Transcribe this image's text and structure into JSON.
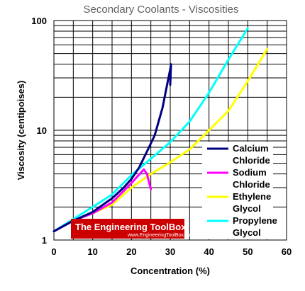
{
  "chart_data": {
    "type": "line",
    "title": "Secondary Coolants - Viscosities",
    "xlabel": "Concentration (%)",
    "ylabel": "Viscosity (centipoises)",
    "xlim": [
      0,
      60
    ],
    "ylim": [
      1,
      100
    ],
    "yscale": "log",
    "x_ticks": [
      "0",
      "10",
      "20",
      "30",
      "40",
      "50",
      "60"
    ],
    "y_ticks": [
      {
        "value": 1,
        "label": "1"
      },
      {
        "value": 10,
        "label": "10"
      },
      {
        "value": 100,
        "label": "100"
      }
    ],
    "grid": true,
    "legend": "right",
    "series": [
      {
        "legend_lines": [
          "Calcium",
          "Chloride"
        ],
        "color": "#000080",
        "x": [
          0,
          5,
          10,
          15,
          18,
          20,
          22,
          24,
          26,
          27,
          28,
          29,
          30,
          30.2,
          30
        ],
        "y": [
          1.2,
          1.5,
          1.8,
          2.4,
          3.0,
          3.6,
          4.6,
          6.4,
          9.0,
          12.0,
          16.0,
          24.0,
          36.0,
          40.0,
          26.0
        ]
      },
      {
        "legend_lines": [
          "Sodium",
          "Chloride"
        ],
        "color": "#ff00ff",
        "x": [
          0,
          5,
          10,
          15,
          18,
          20,
          23.2,
          24,
          24.5,
          25
        ],
        "y": [
          1.2,
          1.5,
          1.75,
          2.2,
          2.8,
          3.3,
          4.4,
          4.0,
          3.4,
          2.9
        ]
      },
      {
        "legend_lines": [
          "Ethylene",
          "Glycol"
        ],
        "color": "#ffff00",
        "x": [
          0,
          5,
          10,
          15,
          20,
          25,
          30,
          35,
          40,
          45,
          50,
          55
        ],
        "y": [
          1.2,
          1.5,
          1.75,
          2.1,
          3.0,
          4.0,
          5.1,
          6.7,
          10.0,
          15.0,
          28.0,
          55.0
        ]
      },
      {
        "legend_lines": [
          "Propylene",
          "Glycol"
        ],
        "color": "#00ffff",
        "x": [
          0,
          5,
          10,
          15,
          20,
          25,
          30,
          35,
          40,
          45,
          50
        ],
        "y": [
          1.2,
          1.55,
          2.0,
          2.6,
          3.9,
          5.5,
          7.8,
          12.0,
          22.0,
          44.0,
          85.0
        ]
      }
    ]
  },
  "watermark": {
    "title": "The Engineering ToolBox",
    "url": "www.EngineeringToolBox.com"
  }
}
